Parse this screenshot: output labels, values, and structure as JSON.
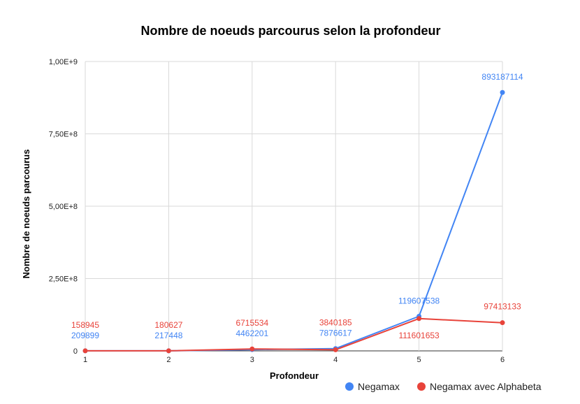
{
  "chart_data": {
    "type": "line",
    "title": "Nombre de noeuds parcourus selon la profondeur",
    "xlabel": "Profondeur",
    "ylabel": "Nombre de noeuds parcourus",
    "x": [
      1,
      2,
      3,
      4,
      5,
      6
    ],
    "x_tick_labels": [
      "1",
      "2",
      "3",
      "4",
      "5",
      "6"
    ],
    "ylim": [
      0,
      1000000000
    ],
    "y_ticks": [
      0,
      250000000,
      500000000,
      750000000,
      1000000000
    ],
    "y_tick_labels": [
      "0",
      "2,50E+8",
      "5,00E+8",
      "7,50E+8",
      "1,00E+9"
    ],
    "grid": true,
    "legend_position": "bottom-right",
    "series": [
      {
        "name": "Negamax",
        "color": "#4285f4",
        "values": [
          209899,
          217448,
          4462201,
          7876617,
          119607538,
          893187114
        ],
        "labels": [
          "209899",
          "217448",
          "4462201",
          "7876617",
          "119607538",
          "893187114"
        ]
      },
      {
        "name": "Negamax avec Alphabeta",
        "color": "#e8433a",
        "values": [
          158945,
          180627,
          6715534,
          3840185,
          111601653,
          97413133
        ],
        "labels": [
          "158945",
          "180627",
          "6715534",
          "3840185",
          "111601653",
          "97413133"
        ]
      }
    ]
  }
}
